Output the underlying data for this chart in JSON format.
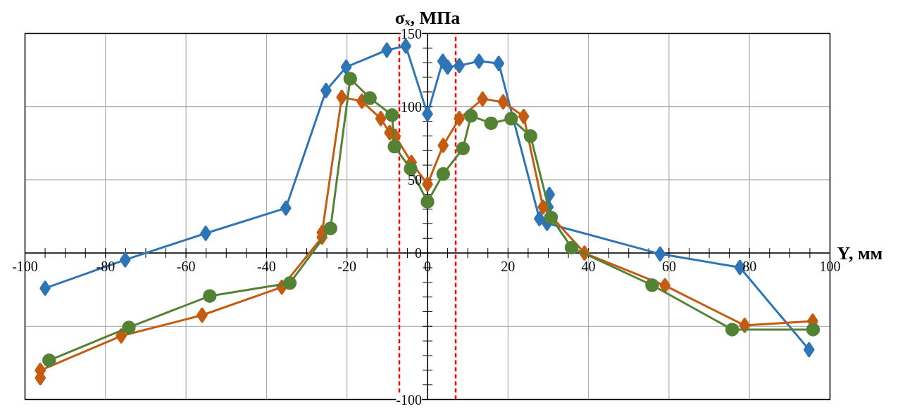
{
  "chart_data": {
    "type": "line",
    "xlabel": "Y, мм",
    "ylabel": "σₓ, МПа",
    "xlim": [
      -100,
      100
    ],
    "ylim": [
      -100,
      150
    ],
    "xticks": [
      -100,
      -80,
      -60,
      -40,
      -20,
      0,
      20,
      40,
      60,
      80,
      100
    ],
    "yticks": [
      -100,
      {
        "value": -50,
        "label": null
      },
      0,
      50,
      100,
      150
    ],
    "grid": true,
    "ref_lines": [
      {
        "axis": "x",
        "value": -7,
        "color": "#ff0000",
        "line_style": "dashed"
      },
      {
        "axis": "x",
        "value": 7,
        "color": "#ff0000",
        "line_style": "dashed"
      }
    ],
    "series": [
      {
        "color": "#2e75b6",
        "marker": "diamond",
        "x": [
          -95,
          -75.1,
          -55.1,
          -35.2,
          -25.2,
          -20.2,
          -10.1,
          -5.4,
          0,
          3.8,
          5,
          7.9,
          12.8,
          17.7,
          27.8,
          30.3,
          30,
          29.7,
          57.8,
          77.6,
          94.8
        ],
        "values": [
          -24,
          -4.6,
          13.5,
          30.7,
          111,
          127,
          138.6,
          141.3,
          95,
          131,
          127,
          128,
          131,
          129.5,
          23.5,
          40,
          31.4,
          20.3,
          -0.6,
          -9.8,
          -66
        ]
      },
      {
        "color": "#c55a11",
        "marker": "diamond",
        "x": [
          -96.2,
          -96.2,
          -76.1,
          -56,
          -36.2,
          -26.2,
          -26.2,
          -21.3,
          -16.3,
          -11.6,
          -9.4,
          -8,
          -4,
          0,
          3.9,
          7.9,
          13.7,
          18.8,
          23.9,
          28.7,
          39,
          59,
          78.8,
          95.7
        ],
        "values": [
          -85.2,
          -80.1,
          -56.6,
          -42.4,
          -23.3,
          10.8,
          14,
          106.4,
          103.7,
          91.8,
          82.2,
          79.9,
          61.9,
          47,
          73.5,
          91.8,
          105.2,
          103.2,
          93.3,
          31.4,
          0,
          -22.2,
          -49.4,
          -46.5
        ]
      },
      {
        "color": "#548235",
        "marker": "circle",
        "x": [
          -94,
          -74.2,
          -54.1,
          -34.2,
          -24.1,
          -19.2,
          -14.3,
          -8.8,
          -8.2,
          -4.2,
          0,
          3.9,
          8.8,
          10.8,
          15.8,
          20.8,
          25.6,
          30.7,
          35.8,
          55.8,
          75.7,
          95.8
        ],
        "values": [
          -73.3,
          -50.8,
          -29.3,
          -20.5,
          16.9,
          119.1,
          105.8,
          94.2,
          72.7,
          57.6,
          35,
          54,
          71.4,
          93.7,
          88.6,
          91.8,
          79.9,
          24.3,
          3.7,
          -21.9,
          -52.2,
          -52.2
        ]
      }
    ]
  }
}
